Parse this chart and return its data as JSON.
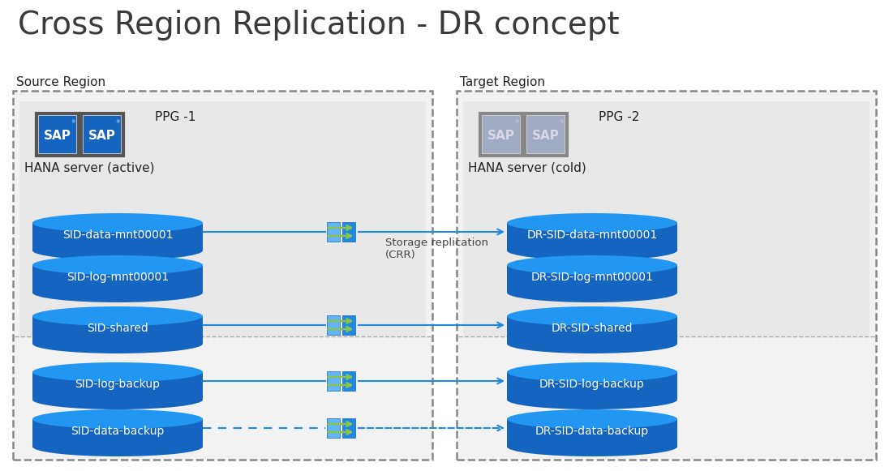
{
  "title": "Cross Region Replication - DR concept",
  "title_fontsize": 28,
  "title_color": "#3a3a3a",
  "bg_color": "#ffffff",
  "source_region_label": "Source Region",
  "target_region_label": "Target Region",
  "source_ppg_label": "PPG -1",
  "target_ppg_label": "PPG -2",
  "hana_active_label": "HANA server (active)",
  "hana_cold_label": "HANA server (cold)",
  "storage_replication_label": "Storage replication\n(CRR)",
  "source_disks": [
    "SID-data-mnt00001",
    "SID-log-mnt00001",
    "SID-shared",
    "SID-log-backup",
    "SID-data-backup"
  ],
  "target_disks": [
    "DR-SID-data-mnt00001",
    "DR-SID-log-mnt00001",
    "DR-SID-shared",
    "DR-SID-log-backup",
    "DR-SID-data-backup"
  ],
  "disk_body_color": "#1565c0",
  "disk_top_color": "#2196f3",
  "disk_text_color": "#ffffff",
  "disk_text_fontsize": 10,
  "line_color": "#1e88e5",
  "dashed_indices": [
    4
  ],
  "connector_blue": "#42a5f5",
  "connector_green": "#8bc34a",
  "inner_box_color": "#e8e8e8",
  "outer_box_color": "#f2f2f2",
  "region_label_fontsize": 11,
  "ppg_label_fontsize": 11,
  "hana_label_fontsize": 11
}
